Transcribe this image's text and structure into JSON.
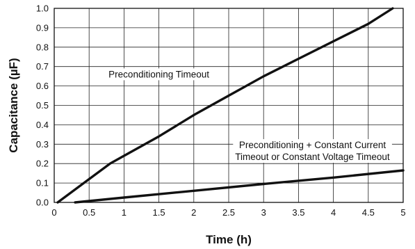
{
  "chart_data": {
    "type": "line",
    "xlabel": "Time (h)",
    "ylabel": "Capacitance (µF)",
    "xlim": [
      0,
      5
    ],
    "ylim": [
      0,
      1.0
    ],
    "x_ticks": [
      "0",
      "0.5",
      "1",
      "1.5",
      "2",
      "2.5",
      "3",
      "3.5",
      "4",
      "4.5",
      "5"
    ],
    "y_ticks": [
      "0.0",
      "0.1",
      "0.2",
      "0.3",
      "0.4",
      "0.5",
      "0.6",
      "0.7",
      "0.8",
      "0.9",
      "1.0"
    ],
    "grid": true,
    "series": [
      {
        "name": "Preconditioning Timeout",
        "color": "#111111",
        "points": [
          [
            0.05,
            0.0
          ],
          [
            0.5,
            0.12
          ],
          [
            0.8,
            0.2
          ],
          [
            1.0,
            0.24
          ],
          [
            1.5,
            0.34
          ],
          [
            2.0,
            0.45
          ],
          [
            2.5,
            0.55
          ],
          [
            3.0,
            0.65
          ],
          [
            3.5,
            0.74
          ],
          [
            4.0,
            0.83
          ],
          [
            4.5,
            0.92
          ],
          [
            4.85,
            1.0
          ]
        ]
      },
      {
        "name": "Preconditioning + Constant Current Timeout or Constant Voltage Timeout",
        "color": "#111111",
        "points": [
          [
            0.3,
            0.0
          ],
          [
            1.0,
            0.025
          ],
          [
            2.0,
            0.06
          ],
          [
            3.0,
            0.095
          ],
          [
            4.0,
            0.128
          ],
          [
            5.0,
            0.165
          ]
        ]
      }
    ],
    "annotations": [
      {
        "lines": [
          "Preconditioning Timeout"
        ],
        "x": 1.5,
        "y": 0.66
      },
      {
        "lines": [
          "Preconditioning + Constant Current",
          "Timeout or Constant Voltage Timeout"
        ],
        "x": 3.7,
        "y": 0.265
      }
    ]
  }
}
